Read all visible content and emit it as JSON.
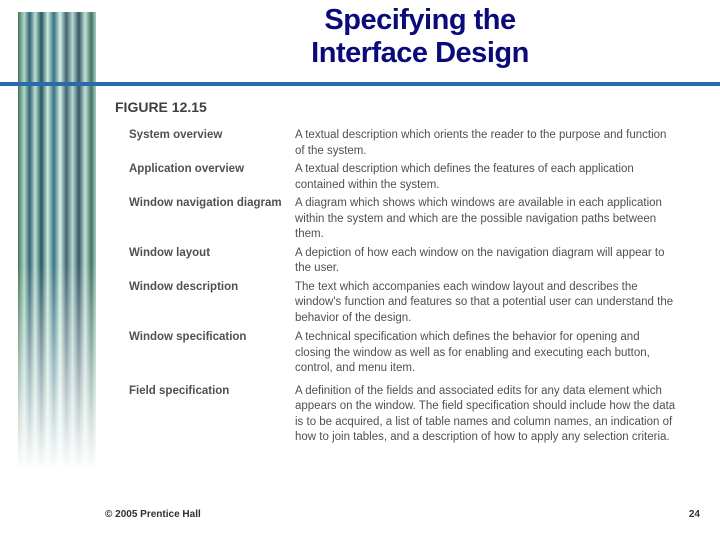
{
  "title_line1": "Specifying the",
  "title_line2": "Interface Design",
  "figure_label": "FIGURE 12.15",
  "rows": [
    {
      "term": "System overview",
      "desc": "A textual description which orients the reader to the purpose and function of the system."
    },
    {
      "term": "Application overview",
      "desc": "A textual description which defines the features of each application contained within the system."
    },
    {
      "term": "Window navigation diagram",
      "desc": "A diagram which shows which windows are available in each application within the system and which are the possible navigation paths between them."
    },
    {
      "term": "Window layout",
      "desc": "A depiction of how each window on the navigation diagram will appear to the user."
    },
    {
      "term": "Window description",
      "desc": "The text which accompanies each window layout and describes the window's function and features so that a potential user can understand the behavior of the design."
    },
    {
      "term": "Window specification",
      "desc": "A technical specification which defines the behavior for opening and closing the window as well as for enabling and executing each button, control, and menu item."
    },
    {
      "term": "Field specification",
      "desc": "A definition of the fields and associated edits for any data element which appears on the window. The field specification should include how the data is to be acquired, a list of table names and column names, an indication of how to join tables, and a description of how to apply any selection criteria."
    }
  ],
  "row_margins_bottom": [
    3,
    3,
    3,
    3,
    4,
    7,
    0
  ],
  "footer": "© 2005  Prentice Hall",
  "page_number": "24",
  "colors": {
    "title": "#0a0a7a",
    "rule": "#2a6aaa",
    "text": "#505050",
    "fig_label": "#404040"
  }
}
